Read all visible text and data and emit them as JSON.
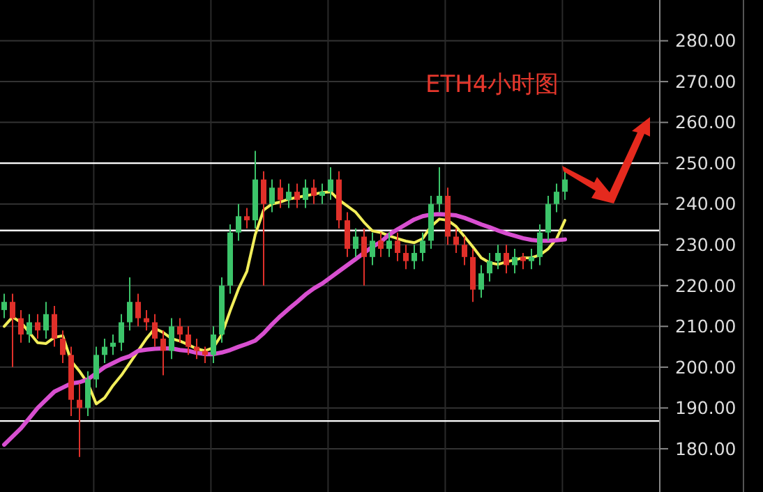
{
  "chart_data": {
    "type": "candlestick",
    "title": "ETH4小时图",
    "categories": [
      null,
      null,
      null,
      null,
      null,
      null,
      null,
      null,
      null,
      null,
      null,
      null,
      null,
      null,
      null,
      null,
      null,
      null,
      null,
      null,
      null,
      null,
      null,
      null,
      null,
      null,
      null,
      null,
      null,
      null,
      null,
      null,
      null,
      null,
      null,
      null,
      null,
      null,
      null,
      null,
      null,
      null,
      null,
      null,
      null,
      null,
      null,
      null,
      null,
      null,
      null,
      null,
      null,
      null,
      null,
      null,
      null,
      null,
      null,
      null,
      null,
      null,
      null,
      null,
      null,
      null,
      null,
      null
    ],
    "ohlc": [
      [
        214,
        218,
        212,
        216
      ],
      [
        216,
        218,
        200,
        212
      ],
      [
        212,
        214,
        206,
        208
      ],
      [
        208,
        213,
        206,
        211
      ],
      [
        211,
        213,
        207,
        209
      ],
      [
        209,
        216,
        207,
        213
      ],
      [
        213,
        215,
        205,
        207
      ],
      [
        207,
        209,
        201,
        203
      ],
      [
        203,
        205,
        188,
        192
      ],
      [
        192,
        196,
        178,
        190
      ],
      [
        190,
        199,
        188,
        197
      ],
      [
        197,
        205,
        195,
        203
      ],
      [
        203,
        207,
        201,
        205
      ],
      [
        205,
        208,
        203,
        206
      ],
      [
        206,
        213,
        204,
        211
      ],
      [
        211,
        222,
        209,
        216
      ],
      [
        216,
        218,
        210,
        212
      ],
      [
        212,
        214,
        209,
        211
      ],
      [
        211,
        213,
        205,
        207
      ],
      [
        207,
        209,
        198,
        204
      ],
      [
        204,
        212,
        202,
        210
      ],
      [
        210,
        212,
        206,
        208
      ],
      [
        208,
        210,
        203,
        205
      ],
      [
        205,
        207,
        202,
        204
      ],
      [
        204,
        205,
        201,
        203
      ],
      [
        203,
        210,
        201,
        208
      ],
      [
        208,
        222,
        206,
        220
      ],
      [
        220,
        235,
        218,
        233
      ],
      [
        233,
        240,
        231,
        237
      ],
      [
        237,
        239,
        234,
        236
      ],
      [
        236,
        253,
        234,
        246
      ],
      [
        246,
        248,
        220,
        240
      ],
      [
        240,
        246,
        238,
        244
      ],
      [
        244,
        246,
        239,
        241
      ],
      [
        241,
        245,
        239,
        243
      ],
      [
        243,
        245,
        239,
        241
      ],
      [
        241,
        246,
        239,
        244
      ],
      [
        244,
        246,
        240,
        242
      ],
      [
        242,
        245,
        240,
        243
      ],
      [
        243,
        249,
        241,
        246
      ],
      [
        246,
        248,
        234,
        236
      ],
      [
        236,
        238,
        227,
        229
      ],
      [
        229,
        234,
        227,
        232
      ],
      [
        232,
        234,
        220,
        227
      ],
      [
        227,
        233,
        225,
        231
      ],
      [
        231,
        233,
        227,
        229
      ],
      [
        229,
        233,
        227,
        231
      ],
      [
        231,
        233,
        226,
        228
      ],
      [
        228,
        230,
        224,
        226
      ],
      [
        226,
        230,
        224,
        228
      ],
      [
        228,
        233,
        226,
        231
      ],
      [
        231,
        242,
        229,
        240
      ],
      [
        240,
        249,
        238,
        242
      ],
      [
        242,
        244,
        230,
        232
      ],
      [
        232,
        234,
        228,
        230
      ],
      [
        230,
        232,
        225,
        227
      ],
      [
        227,
        229,
        216,
        219
      ],
      [
        219,
        225,
        217,
        223
      ],
      [
        223,
        228,
        221,
        226
      ],
      [
        226,
        230,
        224,
        228
      ],
      [
        228,
        230,
        223,
        225
      ],
      [
        225,
        229,
        223,
        227
      ],
      [
        227,
        228,
        224,
        226
      ],
      [
        226,
        229,
        224,
        227
      ],
      [
        227,
        235,
        225,
        233
      ],
      [
        233,
        242,
        231,
        240
      ],
      [
        240,
        245,
        238,
        243
      ],
      [
        243,
        249,
        241,
        246
      ]
    ],
    "colors": [
      "#3cc46a",
      "#e0302a",
      "#e0302a",
      "#3cc46a",
      "#e0302a",
      "#3cc46a",
      "#e0302a",
      "#e0302a",
      "#e0302a",
      "#e0302a",
      "#3cc46a",
      "#3cc46a",
      "#3cc46a",
      "#3cc46a",
      "#3cc46a",
      "#3cc46a",
      "#e0302a",
      "#e0302a",
      "#e0302a",
      "#e0302a",
      "#3cc46a",
      "#e0302a",
      "#e0302a",
      "#e0302a",
      "#e0302a",
      "#3cc46a",
      "#3cc46a",
      "#3cc46a",
      "#3cc46a",
      "#e0302a",
      "#3cc46a",
      "#e0302a",
      "#3cc46a",
      "#e0302a",
      "#3cc46a",
      "#e0302a",
      "#3cc46a",
      "#e0302a",
      "#3cc46a",
      "#3cc46a",
      "#e0302a",
      "#e0302a",
      "#3cc46a",
      "#e0302a",
      "#3cc46a",
      "#e0302a",
      "#3cc46a",
      "#e0302a",
      "#e0302a",
      "#3cc46a",
      "#3cc46a",
      "#3cc46a",
      "#3cc46a",
      "#e0302a",
      "#e0302a",
      "#e0302a",
      "#e0302a",
      "#3cc46a",
      "#3cc46a",
      "#3cc46a",
      "#e0302a",
      "#3cc46a",
      "#e0302a",
      "#3cc46a",
      "#3cc46a",
      "#3cc46a",
      "#3cc46a",
      "#3cc46a"
    ],
    "series": [
      {
        "type": "line",
        "color": "#f2ee5a",
        "values": [
          210,
          212.3,
          211,
          208.5,
          206,
          205.8,
          207.3,
          207.7,
          201.5,
          199,
          196,
          191,
          192.5,
          195.5,
          198,
          201,
          204,
          207,
          209.5,
          208.5,
          207,
          206.4,
          205.5,
          204.5,
          204,
          204.8,
          208,
          213.8,
          219.2,
          223.5,
          232.5,
          238.5,
          240,
          240.5,
          241.2,
          241.6,
          242,
          242.4,
          242.8,
          243,
          241,
          239.5,
          238,
          235.5,
          233.4,
          233,
          232.2,
          231.5,
          230.9,
          230.5,
          231.5,
          234.5,
          236.3,
          236,
          234.5,
          232,
          229.5,
          226.8,
          225.6,
          225.2,
          225.8,
          226.3,
          226.8,
          226.8,
          227.5,
          229,
          231.5,
          236
        ]
      },
      {
        "type": "line",
        "color": "#d84fd0",
        "values": [
          181,
          183,
          185,
          187.5,
          190,
          192,
          194,
          195,
          196,
          196.3,
          197,
          198.5,
          200,
          201,
          202,
          202.7,
          204,
          204.3,
          204.5,
          204.6,
          204.6,
          204.2,
          204,
          203.5,
          203.2,
          203.2,
          203.6,
          204.2,
          205,
          205.7,
          206.5,
          208.3,
          210.5,
          212.5,
          214.3,
          216,
          217.8,
          219.3,
          220.5,
          222,
          223.5,
          225,
          226.5,
          228,
          229.5,
          230.7,
          232.5,
          233.8,
          235,
          236.2,
          237,
          237.4,
          237.5,
          237.4,
          237.2,
          236.6,
          235.8,
          235,
          234.3,
          233.5,
          232.8,
          232.2,
          231.6,
          231.2,
          231,
          231,
          231.1,
          231.3
        ]
      }
    ],
    "ylim": [
      169.4,
      290
    ],
    "yticks": [
      {
        "value": 180,
        "label": "180.00"
      },
      {
        "value": 190,
        "label": "190.00"
      },
      {
        "value": 200,
        "label": "200.00"
      },
      {
        "value": 210,
        "label": "210.00"
      },
      {
        "value": 220,
        "label": "220.00"
      },
      {
        "value": 230,
        "label": "230.00"
      },
      {
        "value": 240,
        "label": "240.00"
      },
      {
        "value": 250,
        "label": "250.00"
      },
      {
        "value": 260,
        "label": "260.00"
      },
      {
        "value": 270,
        "label": "270.00"
      },
      {
        "value": 280,
        "label": "280.00"
      }
    ],
    "grid": "y",
    "tick_labels": "y",
    "ref_lines": [
      {
        "axis": "y",
        "value": 250,
        "color": "#ffffff"
      },
      {
        "axis": "y",
        "value": 233.5,
        "color": "#ffffff"
      },
      {
        "axis": "y",
        "value": 186.8,
        "color": "#ffffff"
      }
    ]
  }
}
